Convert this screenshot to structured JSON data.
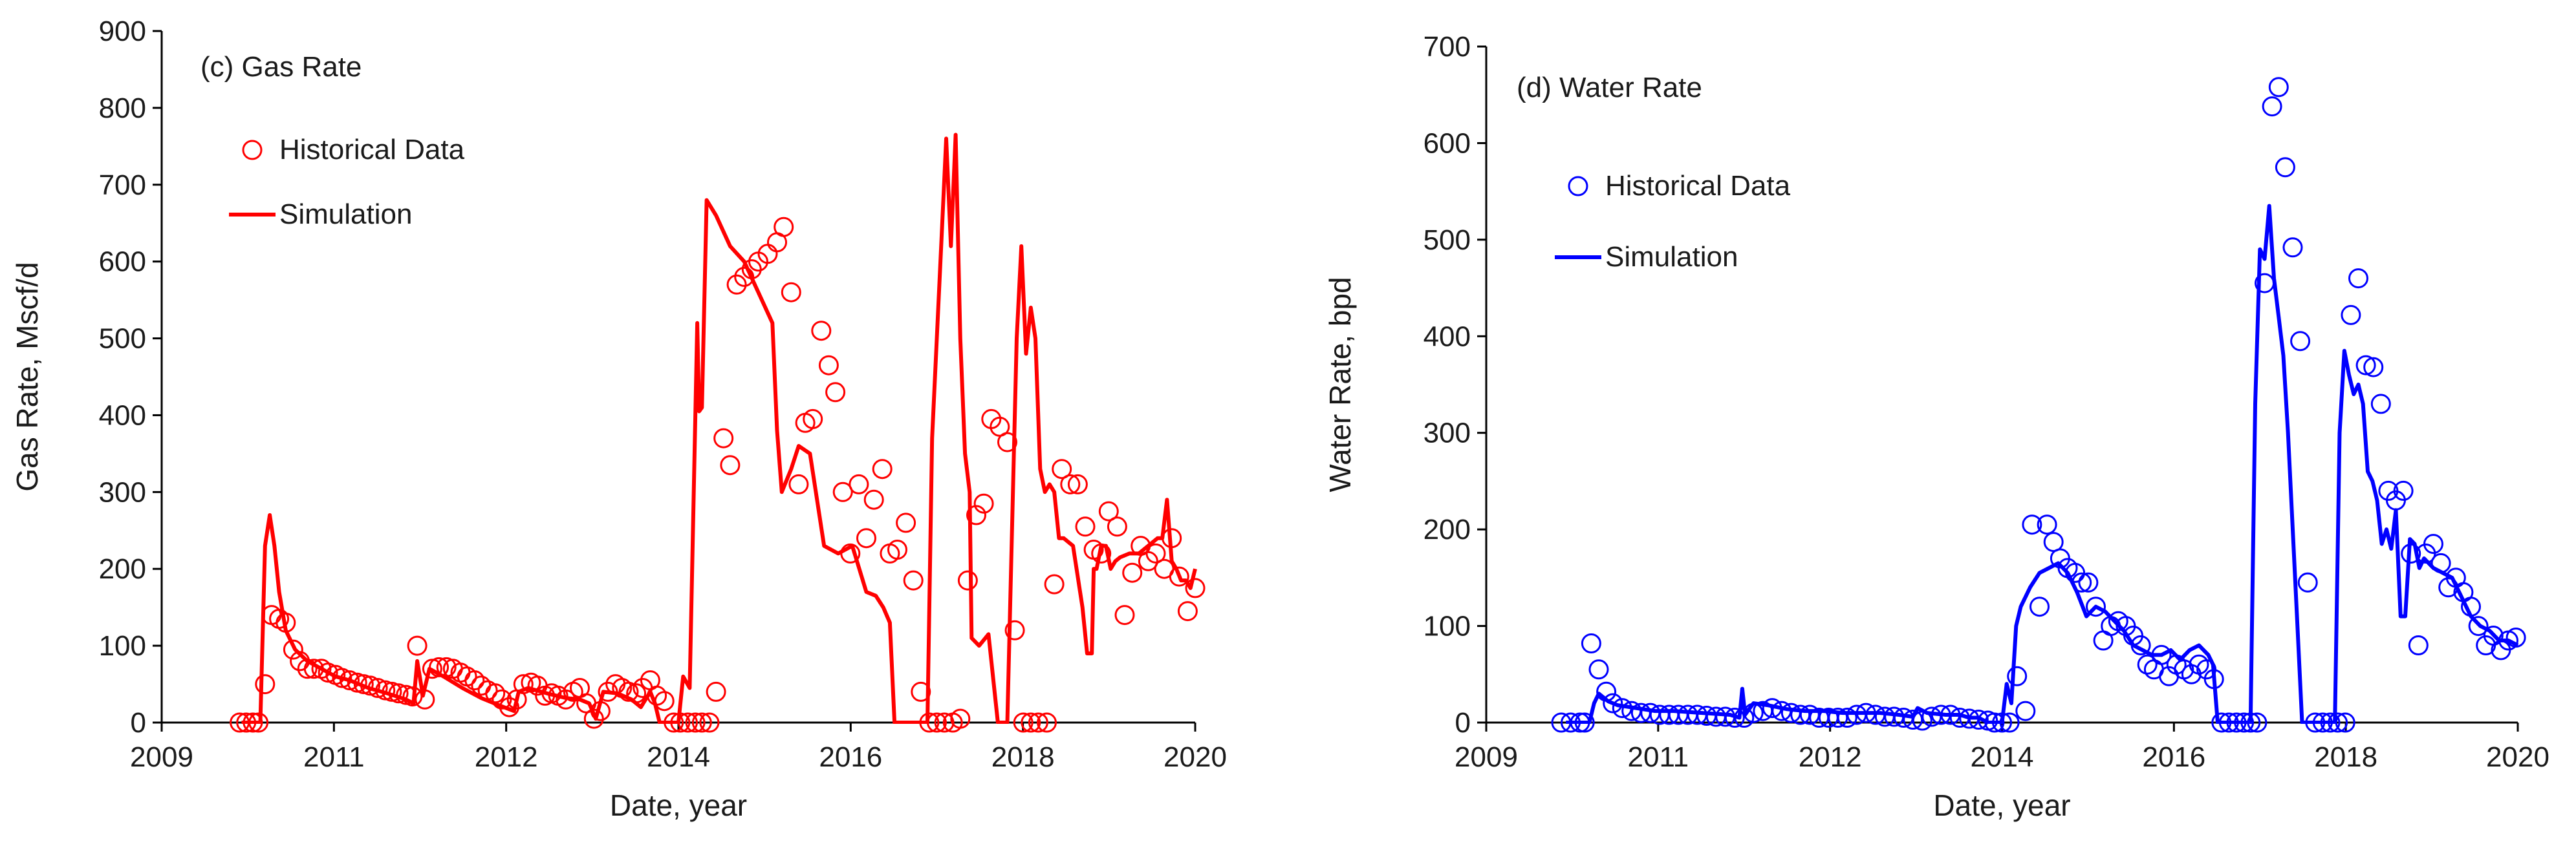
{
  "chart_data": [
    {
      "type": "line",
      "title": "(c) Gas Rate",
      "xlabel": "Date, year",
      "ylabel": "Gas Rate, Mscf/d",
      "xlim": [
        2009,
        2020
      ],
      "ylim": [
        0,
        900
      ],
      "xticks": [
        "2009",
        "2011",
        "2012",
        "2014",
        "2016",
        "2018",
        "2020"
      ],
      "yticks": [
        "0",
        "100",
        "200",
        "300",
        "400",
        "500",
        "600",
        "700",
        "800",
        "900"
      ],
      "legend": {
        "position": "top-left",
        "entries": [
          "Historical Data",
          "Simulation"
        ]
      },
      "colors": {
        "series": "#ff0000"
      },
      "series": [
        {
          "name": "Historical Data",
          "kind": "scatter",
          "x": [
            2009.83,
            2009.9,
            2009.97,
            2010.03,
            2010.1,
            2010.17,
            2010.25,
            2010.32,
            2010.4,
            2010.47,
            2010.55,
            2010.62,
            2010.7,
            2010.77,
            2010.85,
            2010.92,
            2011.0,
            2011.08,
            2011.15,
            2011.22,
            2011.3,
            2011.38,
            2011.45,
            2011.52,
            2011.6,
            2011.67,
            2011.72,
            2011.8,
            2011.88,
            2011.95,
            2012.03,
            2012.1,
            2012.18,
            2012.25,
            2012.33,
            2012.4,
            2012.47,
            2012.55,
            2012.62,
            2012.7,
            2012.78,
            2012.85,
            2012.93,
            2013.0,
            2013.08,
            2013.15,
            2013.22,
            2013.3,
            2013.38,
            2013.45,
            2013.52,
            2013.6,
            2013.67,
            2013.75,
            2013.83,
            2013.9,
            2013.97,
            2014.05,
            2014.12,
            2014.2,
            2014.27,
            2014.35,
            2014.45,
            2014.52,
            2014.6,
            2014.68,
            2014.75,
            2014.83,
            2014.9,
            2014.98,
            2015.05,
            2015.12,
            2015.2,
            2015.28,
            2015.35,
            2015.45,
            2015.55,
            2015.62,
            2015.7,
            2015.78,
            2015.85,
            2015.93,
            2016.02,
            2016.1,
            2016.17,
            2016.25,
            2016.33,
            2016.42,
            2016.5,
            2016.58,
            2016.67,
            2016.75,
            2016.83,
            2016.92,
            2017.0,
            2017.08,
            2017.17,
            2017.25,
            2017.33,
            2017.42,
            2017.5,
            2017.58,
            2017.67,
            2017.75,
            2017.83,
            2017.92,
            2018.0,
            2018.08,
            2018.17,
            2018.25,
            2018.33,
            2018.42,
            2018.5,
            2018.58,
            2018.67,
            2018.75,
            2018.83,
            2018.92,
            2019.0,
            2019.08,
            2019.17,
            2019.25,
            2019.33,
            2019.42,
            2019.5,
            2019.58,
            2019.67,
            2019.75,
            2019.83,
            2019.92,
            2020.0
          ],
          "y": [
            0,
            0,
            0,
            0,
            50,
            140,
            135,
            130,
            95,
            80,
            70,
            70,
            70,
            65,
            62,
            58,
            55,
            52,
            50,
            48,
            45,
            42,
            40,
            38,
            36,
            34,
            100,
            30,
            70,
            72,
            72,
            70,
            65,
            60,
            55,
            48,
            42,
            38,
            30,
            20,
            30,
            50,
            52,
            48,
            35,
            38,
            35,
            30,
            40,
            45,
            25,
            5,
            15,
            40,
            50,
            45,
            40,
            38,
            45,
            55,
            35,
            28,
            0,
            0,
            0,
            0,
            0,
            0,
            40,
            370,
            335,
            570,
            580,
            590,
            600,
            610,
            625,
            645,
            560,
            310,
            390,
            395,
            510,
            465,
            430,
            300,
            220,
            310,
            240,
            290,
            330,
            220,
            225,
            260,
            185,
            40,
            0,
            0,
            0,
            0,
            5,
            185,
            270,
            285,
            395,
            385,
            365,
            120,
            0,
            0,
            0,
            0,
            180,
            330,
            310,
            310,
            255,
            225,
            220,
            275,
            255,
            140,
            195,
            230,
            210,
            220,
            200,
            240,
            190,
            145,
            175
          ]
        },
        {
          "name": "Simulation",
          "kind": "line",
          "x": [
            2009.85,
            2010.05,
            2010.1,
            2010.15,
            2010.2,
            2010.25,
            2010.32,
            2010.42,
            2010.55,
            2010.7,
            2010.85,
            2011.0,
            2011.2,
            2011.4,
            2011.6,
            2011.68,
            2011.72,
            2011.78,
            2011.85,
            2012.0,
            2012.2,
            2012.4,
            2012.6,
            2012.75,
            2012.8,
            2012.9,
            2013.1,
            2013.3,
            2013.45,
            2013.55,
            2013.62,
            2013.7,
            2013.85,
            2014.0,
            2014.1,
            2014.2,
            2014.25,
            2014.3,
            2014.35,
            2014.4,
            2014.45,
            2014.5,
            2014.55,
            2014.62,
            2014.7,
            2014.72,
            2014.75,
            2014.8,
            2014.9,
            2015.05,
            2015.2,
            2015.35,
            2015.5,
            2015.55,
            2015.6,
            2015.7,
            2015.78,
            2015.9,
            2016.05,
            2016.2,
            2016.35,
            2016.5,
            2016.6,
            2016.68,
            2016.75,
            2016.8,
            2016.85,
            2017.0,
            2017.1,
            2017.15,
            2017.2,
            2017.3,
            2017.35,
            2017.4,
            2017.45,
            2017.5,
            2017.55,
            2017.6,
            2017.62,
            2017.7,
            2017.8,
            2017.9,
            2017.95,
            2018.0,
            2018.1,
            2018.15,
            2018.2,
            2018.25,
            2018.3,
            2018.35,
            2018.4,
            2018.45,
            2018.5,
            2018.55,
            2018.6,
            2018.7,
            2018.8,
            2018.85,
            2018.9,
            2018.92,
            2018.95,
            2019.0,
            2019.05,
            2019.1,
            2019.15,
            2019.2,
            2019.3,
            2019.4,
            2019.5,
            2019.6,
            2019.65,
            2019.7,
            2019.75,
            2019.8,
            2019.85,
            2019.9,
            2019.95,
            2020.0
          ],
          "y": [
            0,
            0,
            230,
            270,
            230,
            170,
            120,
            95,
            80,
            70,
            60,
            55,
            45,
            38,
            30,
            25,
            80,
            35,
            70,
            60,
            45,
            32,
            22,
            15,
            40,
            45,
            38,
            32,
            30,
            25,
            5,
            40,
            38,
            30,
            20,
            40,
            25,
            0,
            0,
            0,
            0,
            0,
            60,
            45,
            520,
            405,
            410,
            680,
            660,
            620,
            600,
            560,
            520,
            380,
            300,
            330,
            360,
            350,
            230,
            220,
            230,
            170,
            165,
            150,
            130,
            0,
            0,
            0,
            0,
            0,
            370,
            630,
            760,
            620,
            765,
            500,
            350,
            300,
            110,
            100,
            115,
            0,
            0,
            0,
            500,
            620,
            480,
            540,
            500,
            330,
            300,
            310,
            300,
            240,
            240,
            230,
            150,
            90,
            90,
            200,
            200,
            230,
            230,
            200,
            210,
            215,
            220,
            220,
            230,
            240,
            240,
            290,
            210,
            200,
            185,
            185,
            175,
            200
          ]
        }
      ]
    },
    {
      "type": "line",
      "title": "(d) Water Rate",
      "xlabel": "Date, year",
      "ylabel": "Water Rate, bpd",
      "xlim": [
        2009,
        2020
      ],
      "ylim": [
        0,
        700
      ],
      "xticks": [
        "2009",
        "2011",
        "2012",
        "2014",
        "2016",
        "2018",
        "2020"
      ],
      "yticks": [
        "0",
        "100",
        "200",
        "300",
        "400",
        "500",
        "600",
        "700"
      ],
      "legend": {
        "position": "top-left",
        "entries": [
          "Historical Data",
          "Simulation"
        ]
      },
      "colors": {
        "series": "#0000ff"
      },
      "series": [
        {
          "name": "Historical Data",
          "kind": "scatter",
          "x": [
            2009.8,
            2009.9,
            2010.0,
            2010.05,
            2010.12,
            2010.2,
            2010.28,
            2010.35,
            2010.45,
            2010.55,
            2010.65,
            2010.75,
            2010.85,
            2010.95,
            2011.05,
            2011.15,
            2011.25,
            2011.35,
            2011.45,
            2011.55,
            2011.65,
            2011.75,
            2011.85,
            2011.95,
            2012.05,
            2012.15,
            2012.25,
            2012.35,
            2012.45,
            2012.55,
            2012.65,
            2012.75,
            2012.85,
            2012.95,
            2013.05,
            2013.15,
            2013.25,
            2013.35,
            2013.45,
            2013.55,
            2013.65,
            2013.75,
            2013.85,
            2013.95,
            2014.05,
            2014.15,
            2014.25,
            2014.35,
            2014.42,
            2014.5,
            2014.58,
            2014.66,
            2014.75,
            2014.82,
            2014.9,
            2014.98,
            2015.05,
            2015.12,
            2015.2,
            2015.28,
            2015.35,
            2015.42,
            2015.5,
            2015.58,
            2015.66,
            2015.74,
            2015.82,
            2015.9,
            2015.98,
            2016.05,
            2016.12,
            2016.2,
            2016.28,
            2016.36,
            2016.44,
            2016.52,
            2016.6,
            2016.68,
            2016.76,
            2016.84,
            2016.92,
            2017.0,
            2017.08,
            2017.15,
            2017.22,
            2017.3,
            2017.38,
            2017.45,
            2017.52,
            2017.6,
            2017.68,
            2017.76,
            2017.84,
            2017.92,
            2018.0,
            2018.08,
            2018.16,
            2018.22,
            2018.3,
            2018.38,
            2018.46,
            2018.54,
            2018.62,
            2018.7,
            2018.78,
            2018.86,
            2018.94,
            2019.02,
            2019.1,
            2019.18,
            2019.26,
            2019.34,
            2019.42,
            2019.5,
            2019.58,
            2019.66,
            2019.74,
            2019.82,
            2019.9,
            2019.98
          ],
          "y": [
            0,
            0,
            0,
            0,
            82,
            55,
            32,
            20,
            15,
            12,
            10,
            10,
            8,
            8,
            8,
            8,
            8,
            7,
            6,
            6,
            5,
            5,
            10,
            12,
            15,
            12,
            10,
            8,
            8,
            5,
            5,
            5,
            5,
            8,
            10,
            8,
            6,
            6,
            5,
            3,
            2,
            6,
            8,
            8,
            5,
            4,
            3,
            2,
            0,
            0,
            0,
            48,
            12,
            205,
            120,
            205,
            187,
            170,
            160,
            155,
            145,
            145,
            120,
            85,
            100,
            105,
            100,
            90,
            80,
            60,
            55,
            70,
            48,
            60,
            55,
            50,
            60,
            55,
            45,
            0,
            0,
            0,
            0,
            0,
            0,
            455,
            638,
            658,
            575,
            492,
            395,
            145,
            0,
            0,
            0,
            0,
            0,
            422,
            460,
            370,
            368,
            330,
            240,
            230,
            240,
            175,
            80,
            175,
            185,
            165,
            140,
            150,
            135,
            120,
            100,
            80,
            90,
            75,
            85,
            88
          ]
        },
        {
          "name": "Simulation",
          "kind": "line",
          "x": [
            2009.85,
            2010.1,
            2010.15,
            2010.2,
            2010.3,
            2010.4,
            2010.6,
            2010.8,
            2011.0,
            2011.3,
            2011.6,
            2011.7,
            2011.73,
            2011.76,
            2011.85,
            2012.0,
            2012.2,
            2012.4,
            2012.6,
            2012.8,
            2013.0,
            2013.2,
            2013.4,
            2013.55,
            2013.6,
            2013.7,
            2013.9,
            2014.05,
            2014.15,
            2014.25,
            2014.35,
            2014.4,
            2014.45,
            2014.5,
            2014.55,
            2014.6,
            2014.65,
            2014.7,
            2014.8,
            2014.9,
            2015.0,
            2015.1,
            2015.2,
            2015.3,
            2015.4,
            2015.5,
            2015.6,
            2015.7,
            2015.8,
            2015.9,
            2016.0,
            2016.1,
            2016.2,
            2016.3,
            2016.4,
            2016.5,
            2016.6,
            2016.7,
            2016.75,
            2016.8,
            2016.85,
            2017.0,
            2017.15,
            2017.2,
            2017.25,
            2017.3,
            2017.35,
            2017.4,
            2017.45,
            2017.5,
            2017.55,
            2017.6,
            2017.65,
            2017.7,
            2017.75,
            2017.8,
            2017.85,
            2017.9,
            2018.05,
            2018.1,
            2018.15,
            2018.2,
            2018.25,
            2018.3,
            2018.35,
            2018.4,
            2018.45,
            2018.5,
            2018.55,
            2018.6,
            2018.65,
            2018.7,
            2018.75,
            2018.8,
            2018.85,
            2018.9,
            2018.95,
            2019.0,
            2019.1,
            2019.2,
            2019.3,
            2019.4,
            2019.5,
            2019.6,
            2019.7,
            2019.8,
            2019.9,
            2020.0
          ],
          "y": [
            0,
            0,
            20,
            30,
            22,
            18,
            15,
            12,
            12,
            10,
            8,
            5,
            35,
            8,
            20,
            18,
            14,
            12,
            12,
            10,
            10,
            10,
            8,
            6,
            15,
            10,
            8,
            8,
            5,
            5,
            0,
            0,
            0,
            0,
            40,
            20,
            100,
            120,
            140,
            155,
            160,
            165,
            155,
            135,
            110,
            120,
            115,
            105,
            95,
            80,
            75,
            70,
            70,
            75,
            65,
            75,
            80,
            70,
            60,
            0,
            0,
            0,
            0,
            330,
            490,
            480,
            535,
            460,
            420,
            380,
            300,
            200,
            100,
            0,
            0,
            0,
            0,
            0,
            0,
            300,
            385,
            360,
            340,
            350,
            330,
            260,
            250,
            230,
            185,
            200,
            180,
            220,
            110,
            110,
            190,
            185,
            160,
            170,
            160,
            155,
            150,
            130,
            110,
            100,
            95,
            85,
            85,
            80
          ]
        }
      ]
    }
  ]
}
